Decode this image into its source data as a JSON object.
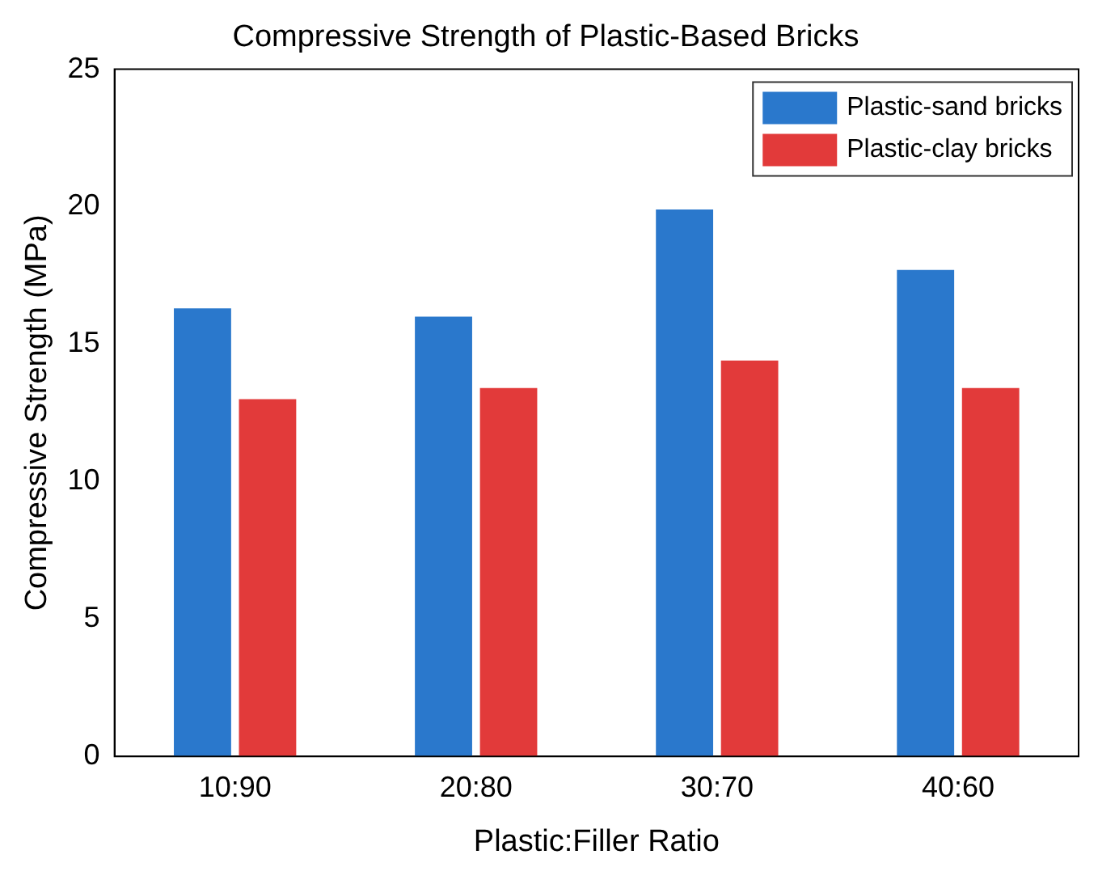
{
  "chart_data": {
    "type": "bar",
    "title": "Compressive Strength of Plastic-Based Bricks",
    "xlabel": "Plastic:Filler Ratio",
    "ylabel": "Compressive Strength (MPa)",
    "categories": [
      "10:90",
      "20:80",
      "30:70",
      "40:60"
    ],
    "series": [
      {
        "name": "Plastic-sand bricks",
        "color": "#2a78cc",
        "values": [
          16.3,
          16.0,
          19.9,
          17.7
        ]
      },
      {
        "name": "Plastic-clay bricks",
        "color": "#e23a3a",
        "values": [
          13.0,
          13.4,
          14.4,
          13.4
        ]
      }
    ],
    "ylim": [
      0,
      25
    ],
    "yticks": [
      0,
      5,
      10,
      15,
      20,
      25
    ],
    "grid": false,
    "legend": "top right"
  }
}
